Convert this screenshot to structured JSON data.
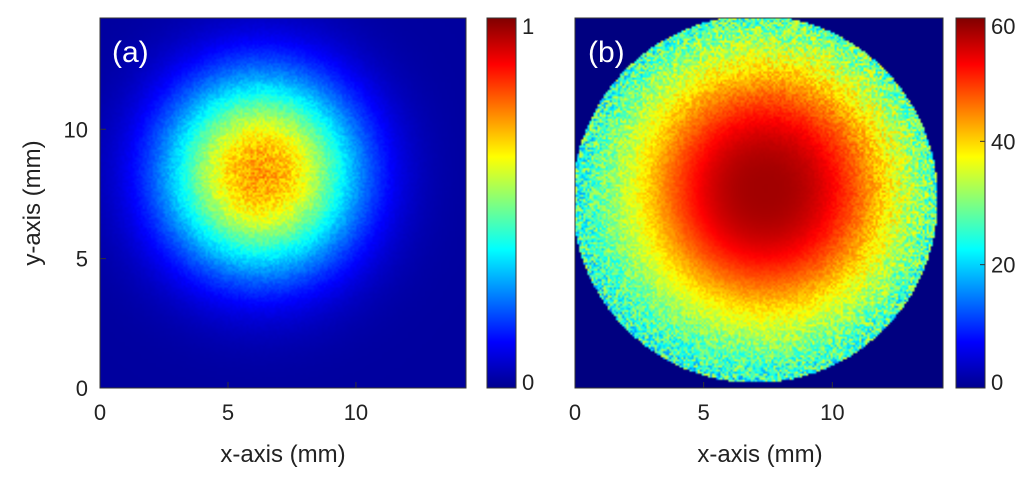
{
  "chart_data": [
    {
      "type": "heatmap",
      "panel_label": "(a)",
      "xlabel": "x-axis (mm)",
      "ylabel": "y-axis (mm)",
      "xlim": [
        0,
        14.3
      ],
      "ylim": [
        0,
        14.3
      ],
      "xticks": [
        0,
        5,
        10
      ],
      "yticks": [
        0,
        5,
        10
      ],
      "colorbar": {
        "range": [
          0,
          1
        ],
        "ticks": [
          0,
          1
        ],
        "colormap": "jet"
      },
      "field": {
        "shape": "soft-disk",
        "center_mm": [
          6.3,
          8.3
        ],
        "radius_mm": 4.6,
        "peak_value": 0.72,
        "background_value": 0.03
      }
    },
    {
      "type": "heatmap",
      "panel_label": "(b)",
      "xlabel": "x-axis (mm)",
      "ylabel": "",
      "xlim": [
        0,
        14.3
      ],
      "ylim": [
        0,
        14.3
      ],
      "xticks": [
        0,
        5,
        10
      ],
      "yticks": [],
      "colorbar": {
        "range": [
          0,
          60
        ],
        "ticks": [
          0,
          20,
          40,
          60
        ],
        "colormap": "jet"
      },
      "field": {
        "shape": "clipped-disk",
        "aperture_center_mm": [
          7.0,
          7.3
        ],
        "aperture_radius_mm": 7.1,
        "hot_center_mm": [
          7.4,
          7.7
        ],
        "peak_value": 58,
        "edge_value": 22,
        "outside_value": 0
      }
    }
  ],
  "colors": {
    "background": "#ffffff",
    "text": "#222222",
    "jet_low": "#00008f",
    "jet_high": "#800000"
  }
}
